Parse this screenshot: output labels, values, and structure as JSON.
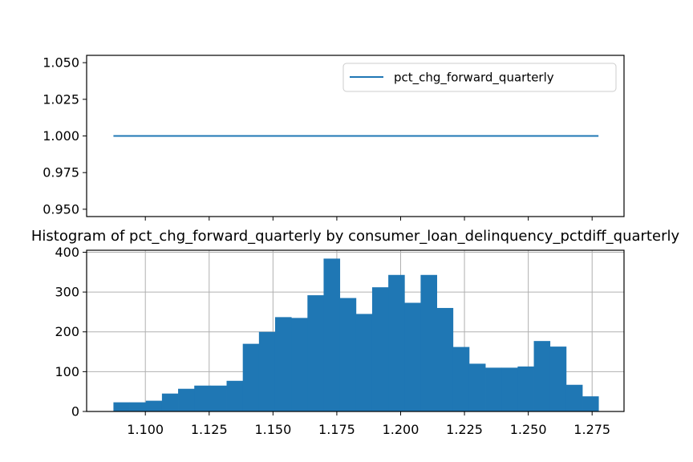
{
  "chart_data": [
    {
      "type": "line",
      "series": [
        {
          "name": "pct_chg_forward_quarterly",
          "x": [
            1.0875,
            1.2775
          ],
          "values": [
            1.0,
            1.0
          ]
        }
      ],
      "ylim": [
        0.945,
        1.055
      ],
      "xlim": [
        1.077,
        1.2875
      ],
      "yticks": [
        "0.950",
        "0.975",
        "1.000",
        "1.025",
        "1.050"
      ],
      "ytick_values": [
        0.95,
        0.975,
        1.0,
        1.025,
        1.05
      ],
      "xtick_values": [
        1.1,
        1.125,
        1.15,
        1.175,
        1.2,
        1.225,
        1.25,
        1.275
      ],
      "grid": false,
      "legend": {
        "entries": [
          "pct_chg_forward_quarterly"
        ],
        "placement": "upper right"
      },
      "color": "#1f77b4"
    },
    {
      "type": "bar",
      "title": "Histogram of pct_chg_forward_quarterly by consumer_loan_delinquency_pctdiff_quarterly",
      "bin_edges": [
        1.0875,
        1.09383,
        1.10017,
        1.1065,
        1.11283,
        1.11917,
        1.1255,
        1.13183,
        1.13817,
        1.1445,
        1.15083,
        1.15717,
        1.1635,
        1.16983,
        1.17617,
        1.1825,
        1.18883,
        1.19517,
        1.2015,
        1.20783,
        1.21417,
        1.2205,
        1.22683,
        1.23317,
        1.2395,
        1.24583,
        1.25217,
        1.2585,
        1.26483,
        1.27117,
        1.2775
      ],
      "values": [
        23,
        23,
        27,
        45,
        57,
        65,
        65,
        77,
        170,
        200,
        237,
        235,
        292,
        384,
        285,
        245,
        312,
        343,
        273,
        343,
        260,
        162,
        120,
        110,
        110,
        113,
        177,
        163,
        67,
        38
      ],
      "xlim": [
        1.077,
        1.2875
      ],
      "ylim": [
        0,
        405
      ],
      "xticks": [
        "1.100",
        "1.125",
        "1.150",
        "1.175",
        "1.200",
        "1.225",
        "1.250",
        "1.275"
      ],
      "xtick_values": [
        1.1,
        1.125,
        1.15,
        1.175,
        1.2,
        1.225,
        1.25,
        1.275
      ],
      "yticks": [
        "0",
        "100",
        "200",
        "300",
        "400"
      ],
      "ytick_values": [
        0,
        100,
        200,
        300,
        400
      ],
      "grid": true,
      "color": "#1f77b4"
    }
  ]
}
